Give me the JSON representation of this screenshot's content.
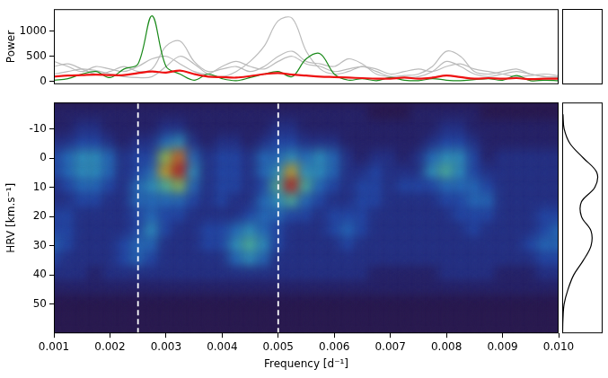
{
  "chart_data": [
    {
      "type": "line",
      "ylabel": "Power",
      "tick_labels": "y",
      "x": [
        0.001,
        0.00125,
        0.0015,
        0.00175,
        0.002,
        0.00225,
        0.0025,
        0.00275,
        0.003,
        0.00325,
        0.0035,
        0.00375,
        0.004,
        0.00425,
        0.0045,
        0.00475,
        0.005,
        0.00525,
        0.0055,
        0.00575,
        0.006,
        0.00625,
        0.0065,
        0.00675,
        0.007,
        0.00725,
        0.0075,
        0.00775,
        0.008,
        0.00825,
        0.0085,
        0.00875,
        0.009,
        0.00925,
        0.0095,
        0.00975,
        0.01
      ],
      "xlim": [
        0.001,
        0.01
      ],
      "ylim": [
        -50,
        1430
      ],
      "yticks": [
        0,
        500,
        1000
      ],
      "series": [
        {
          "color": "#bbbbbb",
          "values": [
            150,
            200,
            250,
            220,
            150,
            100,
            80,
            100,
            300,
            500,
            350,
            150,
            100,
            200,
            400,
            700,
            1200,
            1250,
            600,
            250,
            150,
            200,
            300,
            200,
            100,
            80,
            100,
            200,
            400,
            300,
            150,
            100,
            150,
            200,
            150,
            100,
            80
          ]
        },
        {
          "color": "#bbbbbb",
          "values": [
            300,
            350,
            250,
            150,
            200,
            300,
            200,
            250,
            700,
            800,
            400,
            200,
            250,
            300,
            200,
            300,
            500,
            600,
            400,
            350,
            300,
            450,
            350,
            150,
            100,
            120,
            150,
            300,
            600,
            500,
            200,
            150,
            200,
            250,
            150,
            100,
            100
          ]
        },
        {
          "color": "#bbbbbb",
          "values": [
            400,
            300,
            200,
            300,
            250,
            200,
            300,
            450,
            500,
            350,
            200,
            150,
            300,
            400,
            300,
            250,
            400,
            500,
            350,
            300,
            200,
            250,
            300,
            250,
            150,
            200,
            250,
            200,
            300,
            350,
            250,
            200,
            150,
            100,
            120,
            150,
            120
          ]
        },
        {
          "color": "#1a8a1a",
          "values": [
            30,
            60,
            150,
            200,
            80,
            250,
            350,
            1300,
            300,
            150,
            30,
            150,
            60,
            20,
            80,
            150,
            200,
            100,
            450,
            550,
            150,
            30,
            60,
            20,
            80,
            30,
            20,
            60,
            30,
            20,
            40,
            60,
            30,
            120,
            20,
            30,
            20
          ]
        },
        {
          "color": "#ee1111",
          "values": [
            100,
            120,
            130,
            140,
            130,
            130,
            170,
            200,
            180,
            220,
            150,
            100,
            90,
            80,
            110,
            150,
            170,
            140,
            120,
            100,
            90,
            80,
            70,
            60,
            60,
            80,
            60,
            80,
            120,
            90,
            60,
            70,
            60,
            70,
            50,
            60,
            60
          ]
        }
      ]
    },
    {
      "type": "heatmap",
      "xlabel": "Frequency [d⁻¹]",
      "ylabel": "HRV [km.s⁻¹]",
      "xlim": [
        0.001,
        0.01
      ],
      "xticks": [
        0.001,
        0.002,
        0.003,
        0.004,
        0.005,
        0.006,
        0.007,
        0.008,
        0.009,
        {
          "value": 0.01,
          "label": "0.010"
        }
      ],
      "ylim": [
        60,
        -19
      ],
      "yticks": [
        -10,
        0,
        10,
        20,
        30,
        40,
        50
      ],
      "vlines": [
        0.0025,
        0.005
      ],
      "zlim": [
        0,
        10
      ],
      "x": [
        0.001,
        0.00125,
        0.0015,
        0.00175,
        0.002,
        0.00225,
        0.0025,
        0.00275,
        0.003,
        0.00325,
        0.0035,
        0.00375,
        0.004,
        0.00425,
        0.0045,
        0.00475,
        0.005,
        0.00525,
        0.0055,
        0.00575,
        0.006,
        0.00625,
        0.0065,
        0.00675,
        0.007,
        0.00725,
        0.0075,
        0.00775,
        0.008,
        0.00825,
        0.0085,
        0.00875,
        0.009,
        0.00925,
        0.0095,
        0.00975,
        0.01
      ],
      "y": [
        -15,
        -10,
        -5,
        0,
        5,
        10,
        15,
        20,
        25,
        30,
        35,
        40,
        45,
        50,
        55
      ],
      "cells": [
        [
          1,
          1,
          1,
          1,
          1,
          1,
          1,
          1,
          1,
          1,
          1,
          1,
          1,
          1,
          1,
          1,
          1,
          1,
          1,
          1,
          1,
          1,
          1,
          0,
          0,
          0,
          1,
          1,
          1,
          1,
          1,
          0,
          0,
          0,
          0,
          0,
          0
        ],
        [
          1,
          1,
          2,
          2,
          1,
          1,
          1,
          1,
          2,
          2,
          1,
          1,
          1,
          1,
          1,
          1,
          2,
          2,
          1,
          1,
          1,
          1,
          1,
          1,
          1,
          1,
          1,
          1,
          2,
          2,
          1,
          1,
          1,
          1,
          1,
          1,
          1
        ],
        [
          2,
          2,
          3,
          3,
          2,
          1,
          2,
          2,
          4,
          5,
          2,
          1,
          2,
          2,
          1,
          2,
          3,
          3,
          2,
          2,
          2,
          1,
          1,
          1,
          1,
          1,
          1,
          2,
          3,
          3,
          2,
          1,
          1,
          1,
          1,
          1,
          1
        ],
        [
          3,
          4,
          5,
          5,
          4,
          2,
          3,
          3,
          7,
          9,
          4,
          2,
          3,
          3,
          2,
          4,
          4,
          5,
          4,
          5,
          4,
          2,
          1,
          2,
          2,
          1,
          2,
          4,
          5,
          5,
          3,
          1,
          2,
          2,
          2,
          2,
          2
        ],
        [
          3,
          4,
          5,
          5,
          4,
          2,
          3,
          4,
          8,
          10,
          5,
          2,
          3,
          3,
          2,
          4,
          5,
          8,
          5,
          5,
          4,
          2,
          2,
          3,
          2,
          2,
          2,
          5,
          6,
          5,
          3,
          2,
          2,
          2,
          2,
          2,
          2
        ],
        [
          2,
          3,
          4,
          4,
          3,
          2,
          4,
          5,
          6,
          7,
          4,
          2,
          3,
          3,
          2,
          3,
          6,
          10,
          6,
          4,
          3,
          2,
          3,
          3,
          2,
          3,
          3,
          3,
          4,
          4,
          4,
          3,
          2,
          2,
          2,
          2,
          2
        ],
        [
          2,
          2,
          3,
          3,
          2,
          2,
          4,
          4,
          4,
          4,
          3,
          2,
          3,
          2,
          2,
          4,
          5,
          6,
          4,
          3,
          2,
          2,
          3,
          3,
          2,
          2,
          2,
          2,
          3,
          3,
          4,
          4,
          2,
          2,
          2,
          2,
          2
        ],
        [
          3,
          3,
          2,
          2,
          2,
          2,
          3,
          4,
          3,
          3,
          2,
          2,
          2,
          2,
          3,
          4,
          4,
          3,
          3,
          2,
          3,
          3,
          3,
          2,
          2,
          2,
          2,
          2,
          2,
          3,
          3,
          3,
          2,
          2,
          2,
          3,
          3
        ],
        [
          3,
          3,
          2,
          2,
          2,
          2,
          3,
          5,
          3,
          2,
          2,
          3,
          3,
          4,
          5,
          4,
          3,
          2,
          2,
          2,
          3,
          4,
          3,
          2,
          2,
          2,
          2,
          2,
          2,
          2,
          3,
          2,
          2,
          2,
          2,
          3,
          4
        ],
        [
          4,
          3,
          2,
          2,
          2,
          3,
          4,
          4,
          2,
          2,
          2,
          3,
          3,
          5,
          6,
          5,
          3,
          2,
          2,
          2,
          2,
          3,
          2,
          2,
          2,
          2,
          2,
          2,
          2,
          2,
          2,
          2,
          2,
          2,
          3,
          4,
          4
        ],
        [
          3,
          2,
          2,
          2,
          2,
          3,
          4,
          3,
          2,
          2,
          2,
          2,
          2,
          4,
          5,
          4,
          2,
          2,
          2,
          2,
          2,
          2,
          2,
          2,
          2,
          2,
          2,
          2,
          2,
          2,
          2,
          2,
          2,
          2,
          2,
          3,
          3
        ],
        [
          2,
          2,
          2,
          1,
          2,
          2,
          2,
          2,
          2,
          2,
          2,
          2,
          2,
          2,
          2,
          2,
          2,
          2,
          2,
          2,
          2,
          2,
          2,
          1,
          1,
          1,
          1,
          1,
          2,
          2,
          2,
          2,
          1,
          1,
          1,
          2,
          2
        ],
        [
          1,
          1,
          1,
          1,
          1,
          1,
          1,
          1,
          1,
          1,
          1,
          1,
          1,
          1,
          1,
          1,
          1,
          1,
          1,
          1,
          1,
          1,
          1,
          1,
          1,
          1,
          1,
          1,
          1,
          1,
          1,
          1,
          1,
          1,
          1,
          1,
          1
        ],
        [
          0,
          0,
          0,
          0,
          0,
          0,
          0,
          0,
          0,
          0,
          0,
          0,
          0,
          0,
          0,
          0,
          0,
          0,
          0,
          0,
          0,
          0,
          0,
          0,
          0,
          0,
          0,
          0,
          0,
          0,
          0,
          0,
          0,
          0,
          0,
          0,
          0
        ],
        [
          0,
          0,
          0,
          0,
          0,
          0,
          0,
          0,
          0,
          0,
          0,
          0,
          0,
          0,
          0,
          0,
          0,
          0,
          0,
          0,
          0,
          0,
          0,
          0,
          0,
          0,
          0,
          0,
          0,
          0,
          0,
          0,
          0,
          0,
          0,
          0,
          0
        ]
      ]
    },
    {
      "type": "profile",
      "tick_labels": false,
      "color": "#000000",
      "xlim": [
        0,
        1.05
      ],
      "ylim": [
        60,
        -19
      ],
      "y": [
        -15,
        -10,
        -5,
        0,
        5,
        10,
        15,
        20,
        25,
        30,
        35,
        40,
        45,
        50,
        55,
        60
      ],
      "values": [
        0.02,
        0.05,
        0.2,
        0.55,
        0.9,
        0.85,
        0.5,
        0.5,
        0.75,
        0.75,
        0.55,
        0.3,
        0.15,
        0.05,
        0.02,
        0.01
      ]
    }
  ]
}
